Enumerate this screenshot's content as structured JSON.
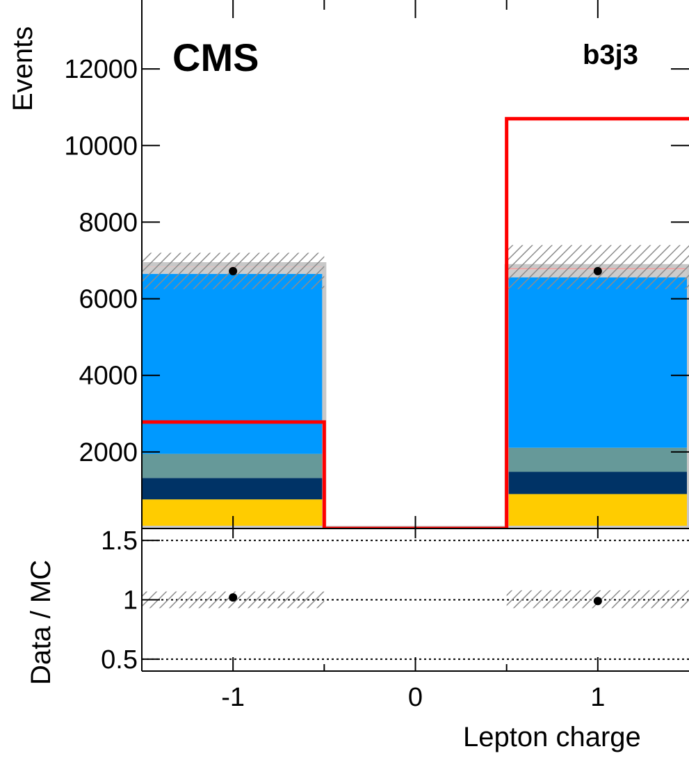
{
  "chart_data": [
    {
      "type": "bar",
      "stacked": true,
      "annotation_experiment": "CMS",
      "annotation_category": "b3j3",
      "ylabel": "Events",
      "xlim": [
        -1.5,
        1.5
      ],
      "ylim": [
        0,
        13800
      ],
      "y_ticks": [
        2000,
        4000,
        6000,
        8000,
        10000,
        12000
      ],
      "x": [
        -1,
        0,
        1
      ],
      "stack_series": [
        {
          "color": "#ffcc00",
          "values": [
            760,
            0,
            900
          ]
        },
        {
          "color": "#003366",
          "values": [
            560,
            0,
            580
          ]
        },
        {
          "color": "#669999",
          "values": [
            630,
            0,
            630
          ]
        },
        {
          "color": "#0099ff",
          "values": [
            4700,
            0,
            4450
          ]
        },
        {
          "color": "#cccccc",
          "values": [
            190,
            0,
            210
          ]
        },
        {
          "color": "#ff9999",
          "values": [
            60,
            0,
            80
          ]
        }
      ],
      "stack_totals": [
        6900,
        0,
        6850
      ],
      "red_line_values": [
        2780,
        0,
        10700
      ],
      "red_line_color": "#ff0000",
      "data_points": [
        6720,
        0,
        6720
      ],
      "uncertainty_band": [
        [
          6250,
          7200
        ],
        [
          null,
          null
        ],
        [
          6250,
          7400
        ]
      ]
    },
    {
      "type": "scatter",
      "ylabel": "Data / MC",
      "xlabel": "Lepton charge",
      "xlim": [
        -1.5,
        1.5
      ],
      "ylim": [
        0.4,
        1.6
      ],
      "y_ticks": [
        "0.5",
        "1",
        "1.5"
      ],
      "x_ticks": [
        "-1",
        "0",
        "1"
      ],
      "x": [
        -1,
        1
      ],
      "values": [
        1.02,
        0.99
      ],
      "uncertainty_band": [
        [
          0.93,
          1.07
        ],
        [
          0.93,
          1.08
        ]
      ],
      "reference_lines": [
        0.5,
        1.0,
        1.5
      ]
    }
  ]
}
